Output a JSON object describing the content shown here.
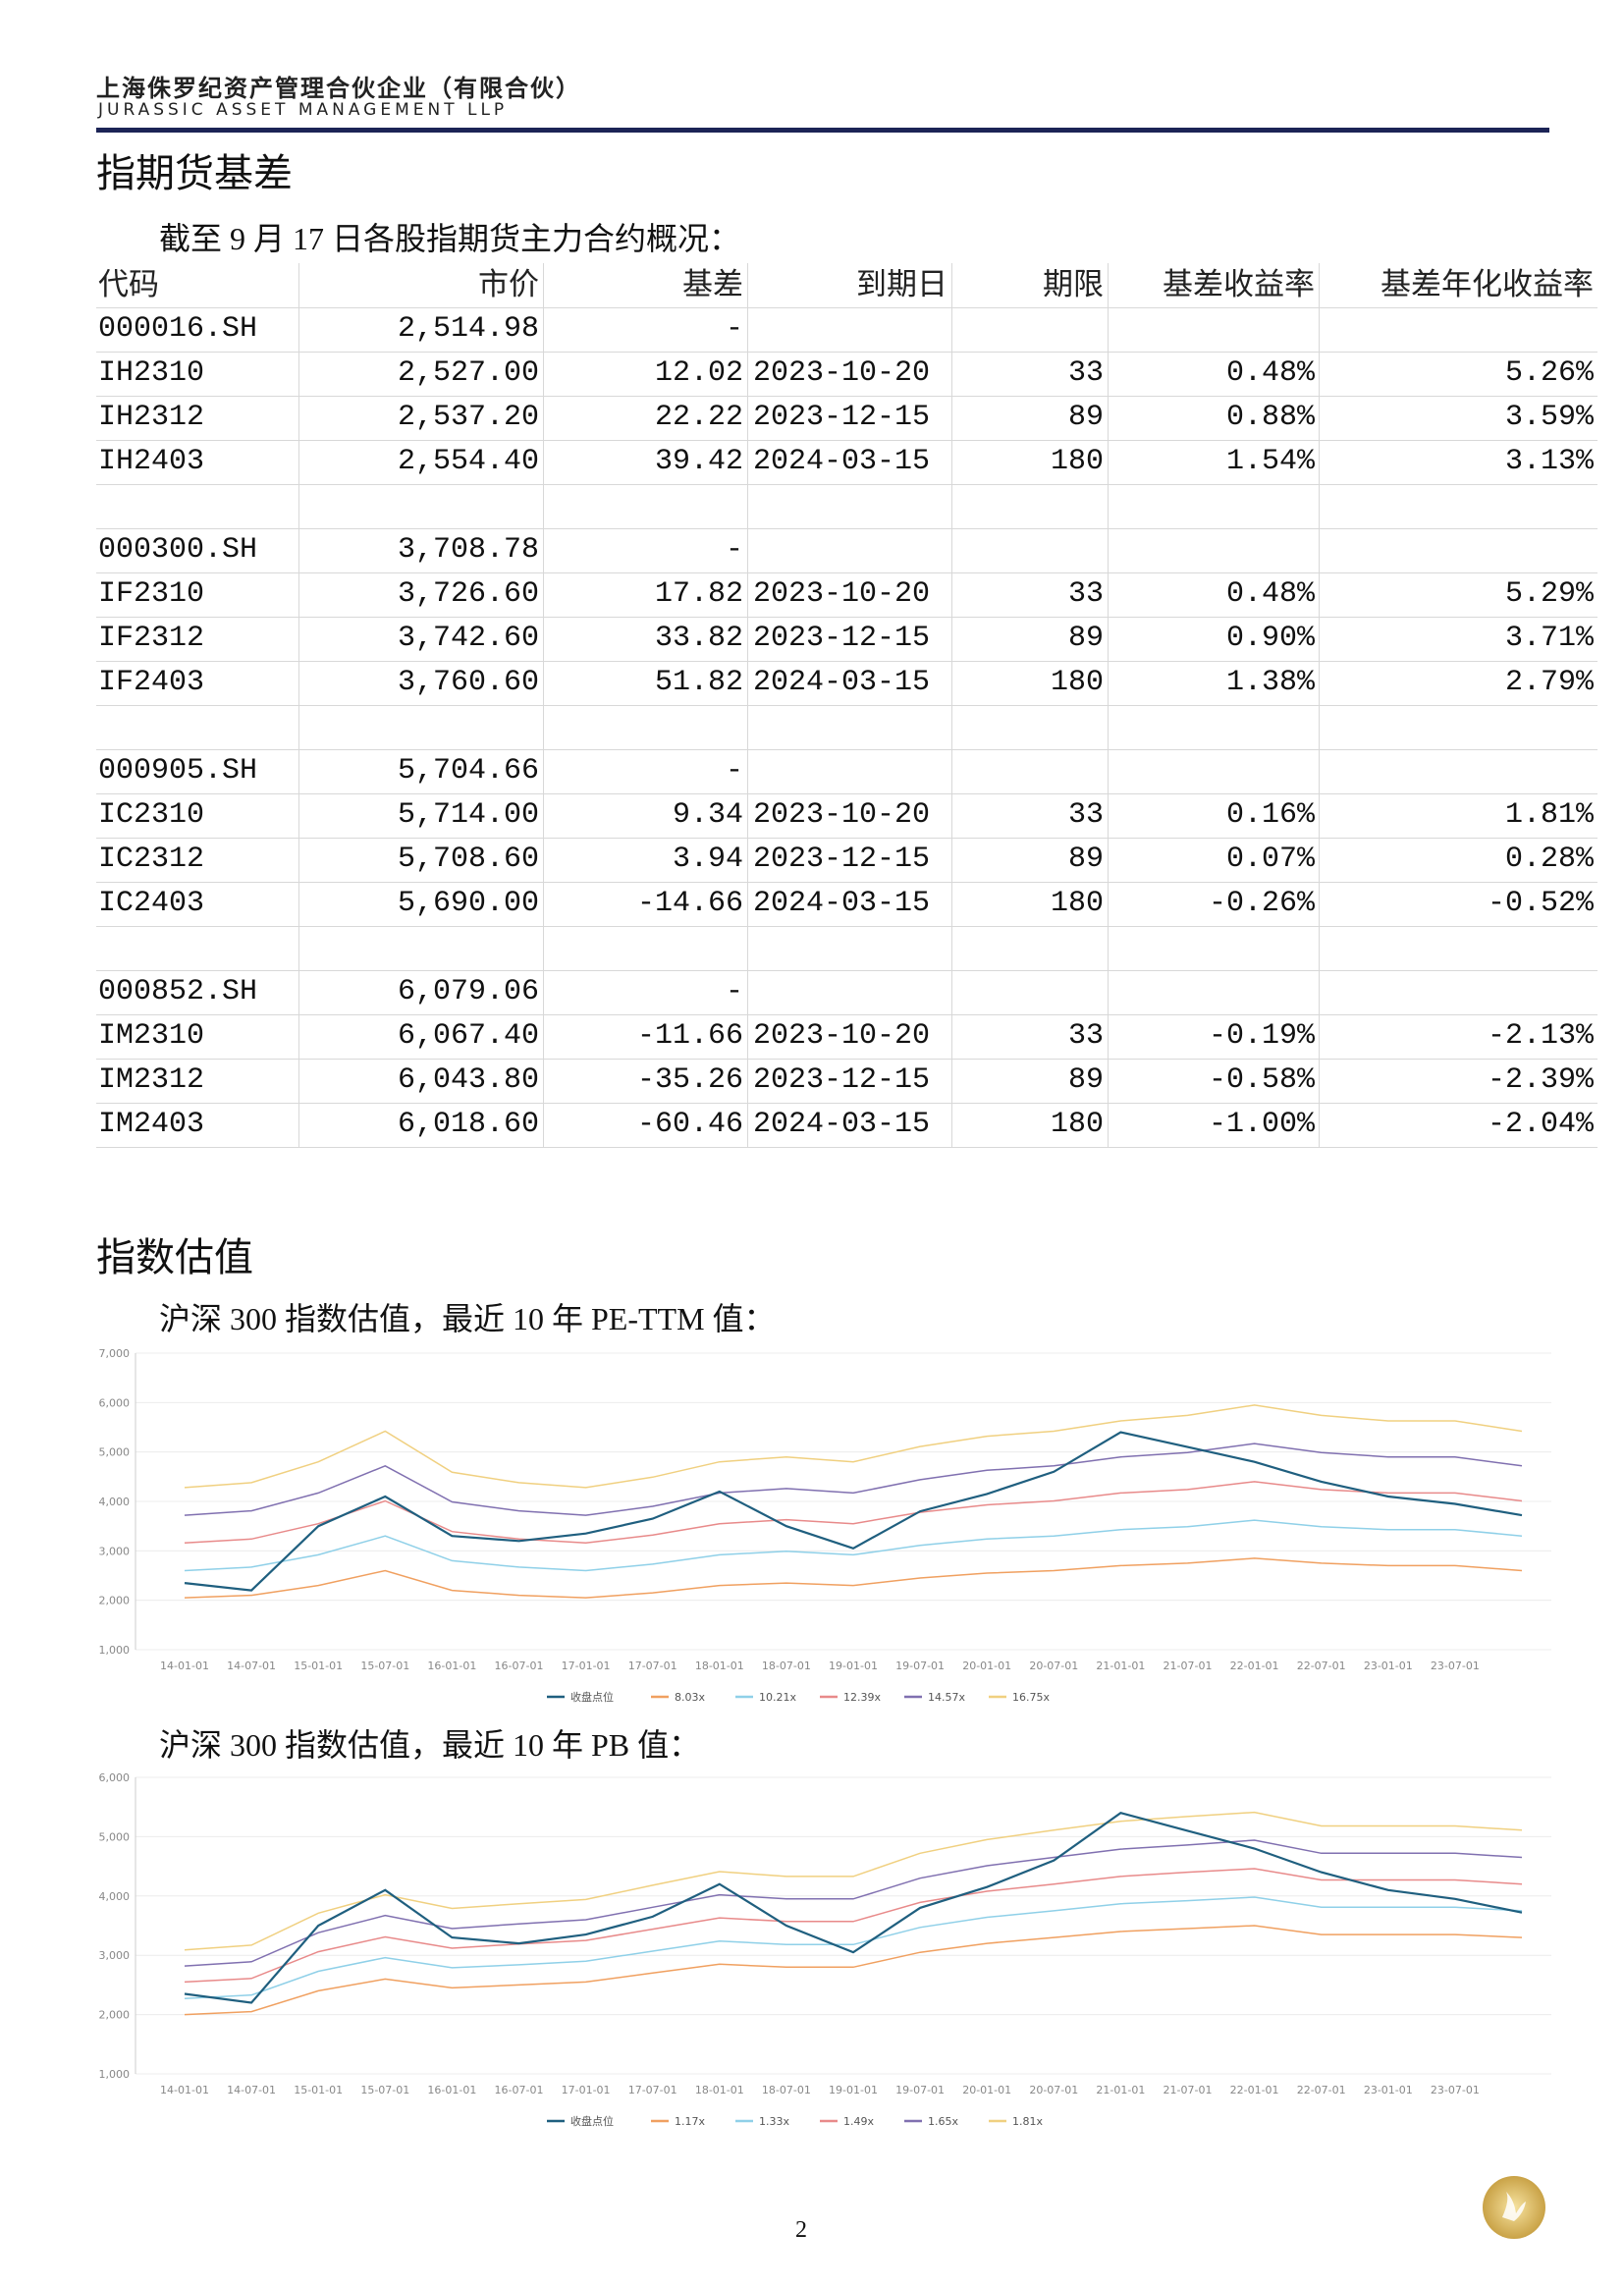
{
  "header": {
    "company_cn": "上海侏罗纪资产管理合伙企业（有限合伙）",
    "company_en": "JURASSIC ASSET MANAGEMENT LLP"
  },
  "sections": [
    {
      "title": "指期货基差"
    },
    {
      "title": "指数估值"
    }
  ],
  "intro": "截至 9 月 17 日各股指期货主力合约概况：",
  "table": {
    "columns": [
      "代码",
      "市价",
      "基差",
      "到期日",
      "期限",
      "基差收益率",
      "基差年化收益率"
    ],
    "groups": [
      {
        "rows": [
          [
            "000016.SH",
            "2,514.98",
            "-"
          ],
          [
            "IH2310",
            "2,527.00",
            "12.02",
            "2023-10-20",
            "33",
            "0.48%",
            "5.26%"
          ],
          [
            "IH2312",
            "2,537.20",
            "22.22",
            "2023-12-15",
            "89",
            "0.88%",
            "3.59%"
          ],
          [
            "IH2403",
            "2,554.40",
            "39.42",
            "2024-03-15",
            "180",
            "1.54%",
            "3.13%"
          ]
        ]
      },
      {
        "rows": [
          [
            "000300.SH",
            "3,708.78",
            "-"
          ],
          [
            "IF2310",
            "3,726.60",
            "17.82",
            "2023-10-20",
            "33",
            "0.48%",
            "5.29%"
          ],
          [
            "IF2312",
            "3,742.60",
            "33.82",
            "2023-12-15",
            "89",
            "0.90%",
            "3.71%"
          ],
          [
            "IF2403",
            "3,760.60",
            "51.82",
            "2024-03-15",
            "180",
            "1.38%",
            "2.79%"
          ]
        ]
      },
      {
        "rows": [
          [
            "000905.SH",
            "5,704.66",
            "-"
          ],
          [
            "IC2310",
            "5,714.00",
            "9.34",
            "2023-10-20",
            "33",
            "0.16%",
            "1.81%"
          ],
          [
            "IC2312",
            "5,708.60",
            "3.94",
            "2023-12-15",
            "89",
            "0.07%",
            "0.28%"
          ],
          [
            "IC2403",
            "5,690.00",
            "-14.66",
            "2024-03-15",
            "180",
            "-0.26%",
            "-0.52%"
          ]
        ]
      },
      {
        "rows": [
          [
            "000852.SH",
            "6,079.06",
            "-"
          ],
          [
            "IM2310",
            "6,067.40",
            "-11.66",
            "2023-10-20",
            "33",
            "-0.19%",
            "-2.13%"
          ],
          [
            "IM2312",
            "6,043.80",
            "-35.26",
            "2023-12-15",
            "89",
            "-0.58%",
            "-2.39%"
          ],
          [
            "IM2403",
            "6,018.60",
            "-60.46",
            "2024-03-15",
            "180",
            "-1.00%",
            "-2.04%"
          ]
        ]
      }
    ]
  },
  "chart_data": [
    {
      "type": "line",
      "title": "沪深 300 指数估值，最近 10 年 PE-TTM 值：",
      "categories": [
        "14-01-01",
        "14-07-01",
        "15-01-01",
        "15-07-01",
        "16-01-01",
        "16-07-01",
        "17-01-01",
        "17-07-01",
        "18-01-01",
        "18-07-01",
        "19-01-01",
        "19-07-01",
        "20-01-01",
        "20-07-01",
        "21-01-01",
        "21-07-01",
        "22-01-01",
        "22-07-01",
        "23-01-01",
        "23-07-01",
        null
      ],
      "ylim": [
        1000,
        7000
      ],
      "yticks": [
        {
          "value": 1000,
          "label": "1,000"
        },
        {
          "value": 2000,
          "label": "2,000"
        },
        {
          "value": 3000,
          "label": "3,000"
        },
        {
          "value": 4000,
          "label": "4,000"
        },
        {
          "value": 5000,
          "label": "5,000"
        },
        {
          "value": 6000,
          "label": "6,000"
        },
        {
          "value": 7000,
          "label": "7,000"
        }
      ],
      "grid": true,
      "series": [
        {
          "name": "收盘点位",
          "color": "#1f5f7f",
          "values": [
            2350,
            2200,
            3500,
            4100,
            3300,
            3200,
            3350,
            3650,
            4200,
            3500,
            3050,
            3800,
            4150,
            4600,
            5400,
            5100,
            4800,
            4400,
            4100,
            3950,
            3720
          ]
        },
        {
          "name": "8.03x",
          "color": "#f0a060",
          "values": [
            2050,
            2100,
            2300,
            2600,
            2200,
            2100,
            2050,
            2150,
            2300,
            2350,
            2300,
            2450,
            2550,
            2600,
            2700,
            2750,
            2850,
            2750,
            2700,
            2700,
            2600
          ]
        },
        {
          "name": "10.21x",
          "color": "#8fd0e8",
          "values": [
            2600,
            2670,
            2920,
            3300,
            2800,
            2670,
            2600,
            2730,
            2920,
            2990,
            2920,
            3110,
            3240,
            3300,
            3430,
            3490,
            3620,
            3490,
            3430,
            3430,
            3300
          ]
        },
        {
          "name": "12.39x",
          "color": "#e88a8a",
          "values": [
            3160,
            3240,
            3550,
            4010,
            3390,
            3240,
            3160,
            3320,
            3550,
            3630,
            3550,
            3780,
            3930,
            4010,
            4170,
            4240,
            4400,
            4240,
            4170,
            4170,
            4010
          ]
        },
        {
          "name": "14.57x",
          "color": "#8070b0",
          "values": [
            3720,
            3810,
            4170,
            4720,
            3990,
            3810,
            3720,
            3900,
            4170,
            4260,
            4170,
            4440,
            4630,
            4720,
            4900,
            4990,
            5170,
            4990,
            4900,
            4900,
            4720
          ]
        },
        {
          "name": "16.75x",
          "color": "#f0d080",
          "values": [
            4280,
            4380,
            4800,
            5420,
            4590,
            4380,
            4280,
            4490,
            4800,
            4900,
            4800,
            5110,
            5320,
            5420,
            5630,
            5740,
            5950,
            5740,
            5630,
            5630,
            5420
          ]
        }
      ]
    },
    {
      "type": "line",
      "title": "沪深 300 指数估值，最近 10 年 PB 值：",
      "categories": [
        "14-01-01",
        "14-07-01",
        "15-01-01",
        "15-07-01",
        "16-01-01",
        "16-07-01",
        "17-01-01",
        "17-07-01",
        "18-01-01",
        "18-07-01",
        "19-01-01",
        "19-07-01",
        "20-01-01",
        "20-07-01",
        "21-01-01",
        "21-07-01",
        "22-01-01",
        "22-07-01",
        "23-01-01",
        "23-07-01",
        null
      ],
      "ylim": [
        1000,
        6000
      ],
      "yticks": [
        {
          "value": 1000,
          "label": "1,000"
        },
        {
          "value": 2000,
          "label": "2,000"
        },
        {
          "value": 3000,
          "label": "3,000"
        },
        {
          "value": 4000,
          "label": "4,000"
        },
        {
          "value": 5000,
          "label": "5,000"
        },
        {
          "value": 6000,
          "label": "6,000"
        }
      ],
      "grid": true,
      "series": [
        {
          "name": "收盘点位",
          "color": "#1f5f7f",
          "values": [
            2350,
            2200,
            3500,
            4100,
            3300,
            3200,
            3350,
            3650,
            4200,
            3500,
            3050,
            3800,
            4150,
            4600,
            5400,
            5100,
            4800,
            4400,
            4100,
            3950,
            3720
          ]
        },
        {
          "name": "1.17x",
          "color": "#f0a060",
          "values": [
            2000,
            2050,
            2400,
            2600,
            2450,
            2500,
            2550,
            2700,
            2850,
            2800,
            2800,
            3050,
            3200,
            3300,
            3400,
            3450,
            3500,
            3350,
            3350,
            3350,
            3300
          ]
        },
        {
          "name": "1.33x",
          "color": "#8fd0e8",
          "values": [
            2270,
            2330,
            2730,
            2960,
            2790,
            2840,
            2900,
            3070,
            3240,
            3180,
            3180,
            3470,
            3640,
            3750,
            3870,
            3920,
            3980,
            3810,
            3810,
            3810,
            3750
          ]
        },
        {
          "name": "1.49x",
          "color": "#e88a8a",
          "values": [
            2550,
            2610,
            3060,
            3310,
            3120,
            3190,
            3250,
            3440,
            3630,
            3570,
            3570,
            3890,
            4080,
            4200,
            4330,
            4400,
            4460,
            4270,
            4270,
            4270,
            4200
          ]
        },
        {
          "name": "1.65x",
          "color": "#8070b0",
          "values": [
            2820,
            2890,
            3380,
            3670,
            3450,
            3530,
            3600,
            3810,
            4020,
            3950,
            3950,
            4300,
            4510,
            4650,
            4790,
            4860,
            4940,
            4720,
            4720,
            4720,
            4650
          ]
        },
        {
          "name": "1.81x",
          "color": "#f0d080",
          "values": [
            3090,
            3170,
            3710,
            4020,
            3790,
            3870,
            3940,
            4180,
            4410,
            4330,
            4330,
            4720,
            4950,
            5110,
            5260,
            5340,
            5410,
            5180,
            5180,
            5180,
            5110
          ]
        }
      ]
    }
  ],
  "page_number": "2"
}
